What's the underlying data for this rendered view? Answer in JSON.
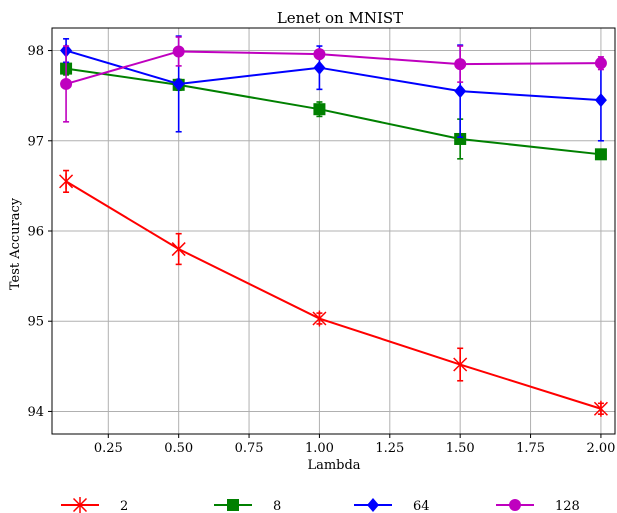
{
  "chart_data": {
    "type": "line",
    "title": "Lenet on MNIST",
    "xlabel": "Lambda",
    "ylabel": "Test Accuracy",
    "xlim": [
      0.05,
      2.05
    ],
    "ylim": [
      93.75,
      98.25
    ],
    "xticks": [
      0.25,
      0.5,
      0.75,
      1.0,
      1.25,
      1.5,
      1.75,
      2.0
    ],
    "xtick_labels": [
      "0.25",
      "0.50",
      "0.75",
      "1.00",
      "1.25",
      "1.50",
      "1.75",
      "2.00"
    ],
    "yticks": [
      94,
      95,
      96,
      97,
      98
    ],
    "ytick_labels": [
      "94",
      "95",
      "96",
      "97",
      "98"
    ],
    "grid": true,
    "legend_position": "bottom",
    "x": [
      0.1,
      0.5,
      1.0,
      1.5,
      2.0
    ],
    "series": [
      {
        "name": "2",
        "color": "#ff0000",
        "marker": "asterisk",
        "values": [
          96.55,
          95.8,
          95.03,
          94.52,
          94.03
        ],
        "errors": [
          0.12,
          0.17,
          0.06,
          0.18,
          0.06
        ]
      },
      {
        "name": "8",
        "color": "#008000",
        "marker": "square",
        "values": [
          97.8,
          97.62,
          97.35,
          97.02,
          96.85
        ],
        "errors": [
          0.07,
          0.06,
          0.08,
          0.22,
          0.04
        ]
      },
      {
        "name": "64",
        "color": "#0000ff",
        "marker": "diamond",
        "values": [
          98.0,
          97.63,
          97.81,
          97.55,
          97.45
        ],
        "errors": [
          0.13,
          0.53,
          0.24,
          0.51,
          0.45
        ]
      },
      {
        "name": "128",
        "color": "#bf00bf",
        "marker": "circle",
        "values": [
          97.63,
          97.99,
          97.96,
          97.85,
          97.86
        ],
        "errors": [
          0.42,
          0.16,
          0.03,
          0.2,
          0.07
        ]
      }
    ]
  }
}
